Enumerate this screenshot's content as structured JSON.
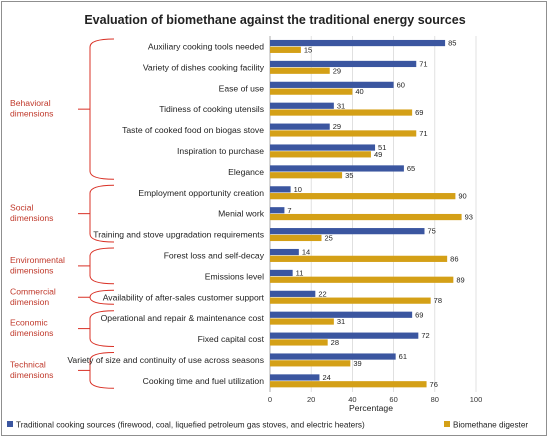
{
  "chart_data": {
    "type": "bar",
    "orientation": "horizontal",
    "title": "Evaluation of biomethane against the traditional energy sources",
    "xlabel": "Percentage",
    "xlim": [
      0,
      100
    ],
    "xticks": [
      "0",
      "20",
      "40",
      "60",
      "80",
      "100"
    ],
    "grid": true,
    "legend_position": "bottom",
    "colors": {
      "traditional": "#3b56a0",
      "biomethane": "#d4a017",
      "bracket": "#d93025",
      "dimension_text": "#c0392b"
    },
    "categories": [
      "Auxiliary cooking tools needed",
      "Variety of dishes cooking facility",
      "Ease of use",
      "Tidiness of cooking utensils",
      "Taste of cooked food on biogas stove",
      "Inspiration to purchase",
      "Elegance",
      "Employment opportunity creation",
      "Menial work",
      "Training and stove upgradation requirements",
      "Forest loss and self-decay",
      "Emissions level",
      "Availability of after-sales customer support",
      "Operational and repair & maintenance cost",
      "Fixed capital cost",
      "Variety of size and continuity of use across seasons",
      "Cooking time and fuel utilization"
    ],
    "series": [
      {
        "name": "Traditional cooking sources (firewood, coal, liquefied petroleum gas stoves, and electric heaters)",
        "values": [
          85,
          71,
          60,
          31,
          29,
          51,
          65,
          10,
          7,
          75,
          14,
          11,
          22,
          69,
          72,
          61,
          24
        ]
      },
      {
        "name": "Biomethane digester",
        "values": [
          15,
          29,
          40,
          69,
          71,
          49,
          35,
          90,
          93,
          25,
          86,
          89,
          78,
          31,
          28,
          39,
          76
        ]
      }
    ],
    "dimensions": [
      {
        "lines": [
          "Behavioral",
          "dimensions"
        ],
        "start": 0,
        "end": 6
      },
      {
        "lines": [
          "Social",
          "dimensions"
        ],
        "start": 7,
        "end": 9
      },
      {
        "lines": [
          "Environmental",
          "dimensions"
        ],
        "start": 10,
        "end": 11
      },
      {
        "lines": [
          "Commercial",
          "dimension"
        ],
        "start": 12,
        "end": 12
      },
      {
        "lines": [
          "Economic",
          "dimensions"
        ],
        "start": 13,
        "end": 14
      },
      {
        "lines": [
          "Technical",
          "dimensions"
        ],
        "start": 15,
        "end": 16
      }
    ]
  }
}
